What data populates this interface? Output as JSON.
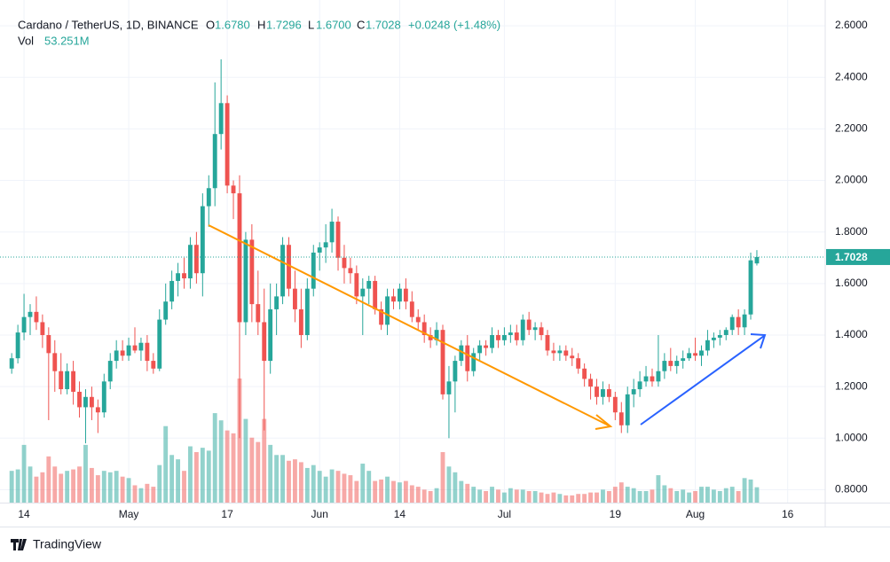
{
  "chart_data": {
    "type": "candlestick",
    "title": "Cardano / TetherUS, 1D, BINANCE",
    "legend": {
      "open_label": "O",
      "open": "1.6780",
      "high_label": "H",
      "high": "1.7296",
      "low_label": "L",
      "low": "1.6700",
      "close_label": "C",
      "close": "1.7028",
      "change": "+0.0248 (+1.48%)",
      "volume_label": "Vol",
      "volume": "53.251M"
    },
    "last_price_label": "1.7028",
    "up_color": "#26a69a",
    "down_color": "#ef5350",
    "ohlc": [
      [
        1.27,
        1.33,
        1.25,
        1.31
      ],
      [
        1.31,
        1.44,
        1.29,
        1.41
      ],
      [
        1.41,
        1.56,
        1.38,
        1.47
      ],
      [
        1.47,
        1.52,
        1.4,
        1.49
      ],
      [
        1.49,
        1.55,
        1.42,
        1.45
      ],
      [
        1.45,
        1.48,
        1.35,
        1.4
      ],
      [
        1.4,
        1.43,
        1.07,
        1.33
      ],
      [
        1.33,
        1.38,
        1.18,
        1.26
      ],
      [
        1.26,
        1.33,
        1.17,
        1.19
      ],
      [
        1.19,
        1.29,
        1.17,
        1.26
      ],
      [
        1.26,
        1.3,
        1.13,
        1.18
      ],
      [
        1.18,
        1.22,
        1.08,
        1.12
      ],
      [
        1.12,
        1.19,
        0.98,
        1.16
      ],
      [
        1.16,
        1.2,
        1.07,
        1.12
      ],
      [
        1.12,
        1.15,
        1.02,
        1.1
      ],
      [
        1.1,
        1.25,
        1.08,
        1.22
      ],
      [
        1.22,
        1.33,
        1.19,
        1.3
      ],
      [
        1.3,
        1.38,
        1.27,
        1.34
      ],
      [
        1.34,
        1.38,
        1.3,
        1.32
      ],
      [
        1.32,
        1.39,
        1.3,
        1.36
      ],
      [
        1.36,
        1.43,
        1.33,
        1.34
      ],
      [
        1.34,
        1.39,
        1.3,
        1.37
      ],
      [
        1.37,
        1.4,
        1.26,
        1.3
      ],
      [
        1.3,
        1.33,
        1.25,
        1.27
      ],
      [
        1.27,
        1.5,
        1.26,
        1.46
      ],
      [
        1.46,
        1.6,
        1.44,
        1.53
      ],
      [
        1.53,
        1.65,
        1.5,
        1.61
      ],
      [
        1.61,
        1.68,
        1.55,
        1.64
      ],
      [
        1.64,
        1.7,
        1.58,
        1.62
      ],
      [
        1.62,
        1.78,
        1.58,
        1.75
      ],
      [
        1.75,
        1.8,
        1.6,
        1.64
      ],
      [
        1.64,
        1.95,
        1.55,
        1.9
      ],
      [
        1.9,
        2.02,
        1.82,
        1.97
      ],
      [
        1.97,
        2.38,
        1.9,
        2.18
      ],
      [
        2.18,
        2.47,
        2.12,
        2.3
      ],
      [
        2.3,
        2.33,
        1.95,
        1.98
      ],
      [
        1.98,
        2.0,
        1.85,
        1.95
      ],
      [
        1.95,
        2.02,
        1.0,
        1.45
      ],
      [
        1.45,
        1.8,
        1.4,
        1.77
      ],
      [
        1.77,
        1.83,
        1.45,
        1.52
      ],
      [
        1.52,
        1.65,
        1.4,
        1.45
      ],
      [
        1.45,
        1.58,
        1.03,
        1.3
      ],
      [
        1.3,
        1.6,
        1.25,
        1.5
      ],
      [
        1.5,
        1.6,
        1.4,
        1.55
      ],
      [
        1.55,
        1.78,
        1.52,
        1.75
      ],
      [
        1.75,
        1.78,
        1.55,
        1.58
      ],
      [
        1.58,
        1.65,
        1.45,
        1.5
      ],
      [
        1.5,
        1.58,
        1.35,
        1.4
      ],
      [
        1.4,
        1.62,
        1.38,
        1.58
      ],
      [
        1.58,
        1.75,
        1.55,
        1.72
      ],
      [
        1.72,
        1.76,
        1.65,
        1.74
      ],
      [
        1.74,
        1.83,
        1.68,
        1.76
      ],
      [
        1.76,
        1.89,
        1.72,
        1.84
      ],
      [
        1.84,
        1.86,
        1.65,
        1.7
      ],
      [
        1.7,
        1.75,
        1.6,
        1.66
      ],
      [
        1.66,
        1.7,
        1.6,
        1.64
      ],
      [
        1.64,
        1.67,
        1.52,
        1.55
      ],
      [
        1.55,
        1.62,
        1.4,
        1.58
      ],
      [
        1.58,
        1.63,
        1.52,
        1.61
      ],
      [
        1.61,
        1.63,
        1.48,
        1.5
      ],
      [
        1.5,
        1.53,
        1.42,
        1.44
      ],
      [
        1.44,
        1.58,
        1.4,
        1.55
      ],
      [
        1.55,
        1.58,
        1.5,
        1.53
      ],
      [
        1.53,
        1.6,
        1.5,
        1.58
      ],
      [
        1.58,
        1.62,
        1.5,
        1.53
      ],
      [
        1.53,
        1.57,
        1.45,
        1.47
      ],
      [
        1.47,
        1.5,
        1.42,
        1.45
      ],
      [
        1.45,
        1.48,
        1.37,
        1.4
      ],
      [
        1.4,
        1.43,
        1.35,
        1.38
      ],
      [
        1.38,
        1.45,
        1.36,
        1.42
      ],
      [
        1.42,
        1.44,
        1.15,
        1.17
      ],
      [
        1.17,
        1.28,
        1.0,
        1.22
      ],
      [
        1.22,
        1.32,
        1.1,
        1.3
      ],
      [
        1.3,
        1.38,
        1.28,
        1.36
      ],
      [
        1.36,
        1.4,
        1.22,
        1.26
      ],
      [
        1.26,
        1.35,
        1.24,
        1.33
      ],
      [
        1.33,
        1.38,
        1.3,
        1.36
      ],
      [
        1.36,
        1.38,
        1.32,
        1.35
      ],
      [
        1.35,
        1.43,
        1.33,
        1.4
      ],
      [
        1.4,
        1.42,
        1.35,
        1.38
      ],
      [
        1.38,
        1.43,
        1.36,
        1.4
      ],
      [
        1.4,
        1.44,
        1.37,
        1.41
      ],
      [
        1.41,
        1.44,
        1.36,
        1.38
      ],
      [
        1.38,
        1.48,
        1.36,
        1.46
      ],
      [
        1.46,
        1.49,
        1.4,
        1.42
      ],
      [
        1.42,
        1.45,
        1.38,
        1.43
      ],
      [
        1.43,
        1.45,
        1.38,
        1.4
      ],
      [
        1.4,
        1.42,
        1.32,
        1.34
      ],
      [
        1.34,
        1.37,
        1.3,
        1.33
      ],
      [
        1.33,
        1.36,
        1.3,
        1.34
      ],
      [
        1.34,
        1.36,
        1.3,
        1.32
      ],
      [
        1.32,
        1.35,
        1.28,
        1.31
      ],
      [
        1.31,
        1.33,
        1.25,
        1.27
      ],
      [
        1.27,
        1.29,
        1.2,
        1.23
      ],
      [
        1.23,
        1.25,
        1.15,
        1.2
      ],
      [
        1.2,
        1.23,
        1.13,
        1.16
      ],
      [
        1.16,
        1.22,
        1.13,
        1.19
      ],
      [
        1.19,
        1.21,
        1.14,
        1.16
      ],
      [
        1.16,
        1.18,
        1.07,
        1.1
      ],
      [
        1.1,
        1.14,
        1.02,
        1.05
      ],
      [
        1.05,
        1.2,
        1.02,
        1.17
      ],
      [
        1.17,
        1.23,
        1.12,
        1.19
      ],
      [
        1.19,
        1.26,
        1.16,
        1.22
      ],
      [
        1.22,
        1.28,
        1.2,
        1.24
      ],
      [
        1.24,
        1.27,
        1.2,
        1.22
      ],
      [
        1.22,
        1.4,
        1.2,
        1.26
      ],
      [
        1.26,
        1.33,
        1.23,
        1.3
      ],
      [
        1.3,
        1.35,
        1.26,
        1.28
      ],
      [
        1.28,
        1.32,
        1.25,
        1.3
      ],
      [
        1.3,
        1.34,
        1.27,
        1.31
      ],
      [
        1.31,
        1.35,
        1.3,
        1.33
      ],
      [
        1.33,
        1.39,
        1.3,
        1.32
      ],
      [
        1.32,
        1.36,
        1.28,
        1.34
      ],
      [
        1.34,
        1.42,
        1.32,
        1.38
      ],
      [
        1.38,
        1.41,
        1.35,
        1.39
      ],
      [
        1.39,
        1.42,
        1.36,
        1.4
      ],
      [
        1.4,
        1.43,
        1.38,
        1.42
      ],
      [
        1.42,
        1.48,
        1.4,
        1.47
      ],
      [
        1.47,
        1.5,
        1.4,
        1.43
      ],
      [
        1.43,
        1.5,
        1.4,
        1.48
      ],
      [
        1.48,
        1.72,
        1.46,
        1.69
      ],
      [
        1.678,
        1.7296,
        1.67,
        1.7028
      ]
    ],
    "volume": [
      110,
      115,
      200,
      125,
      90,
      105,
      160,
      125,
      100,
      110,
      115,
      125,
      200,
      120,
      95,
      110,
      105,
      110,
      90,
      85,
      60,
      50,
      65,
      55,
      130,
      265,
      165,
      150,
      110,
      195,
      175,
      190,
      180,
      310,
      285,
      250,
      240,
      430,
      290,
      225,
      210,
      290,
      200,
      165,
      165,
      145,
      150,
      140,
      120,
      130,
      110,
      90,
      115,
      110,
      100,
      95,
      75,
      135,
      110,
      75,
      80,
      90,
      75,
      70,
      75,
      60,
      55,
      45,
      40,
      50,
      175,
      125,
      105,
      75,
      65,
      55,
      45,
      40,
      55,
      45,
      35,
      50,
      45,
      45,
      40,
      40,
      35,
      30,
      35,
      30,
      25,
      25,
      30,
      30,
      35,
      35,
      45,
      40,
      55,
      70,
      55,
      50,
      40,
      40,
      45,
      95,
      60,
      50,
      40,
      45,
      35,
      40,
      55,
      55,
      45,
      40,
      50,
      55,
      40,
      85,
      80,
      53.251
    ],
    "xlim": [
      -1.9,
      132.1
    ],
    "xticks": [
      {
        "value": 2,
        "label": "14"
      },
      {
        "value": 19,
        "label": "May"
      },
      {
        "value": 35,
        "label": "17"
      },
      {
        "value": 50,
        "label": "Jun"
      },
      {
        "value": 63,
        "label": "14"
      },
      {
        "value": 80,
        "label": "Jul"
      },
      {
        "value": 98,
        "label": "19"
      },
      {
        "value": 111,
        "label": "Aug"
      },
      {
        "value": 126,
        "label": "16"
      }
    ],
    "ylim": [
      0.75,
      2.7
    ],
    "yticks": [
      {
        "value": 0.8,
        "label": "0.8000"
      },
      {
        "value": 1.0,
        "label": "1.0000"
      },
      {
        "value": 1.2,
        "label": "1.2000"
      },
      {
        "value": 1.4,
        "label": "1.4000"
      },
      {
        "value": 1.6,
        "label": "1.6000"
      },
      {
        "value": 1.8,
        "label": "1.8000"
      },
      {
        "value": 2.0,
        "label": "2.0000"
      },
      {
        "value": 2.2,
        "label": "2.2000"
      },
      {
        "value": 2.4,
        "label": "2.4000"
      },
      {
        "value": 2.6,
        "label": "2.6000"
      }
    ],
    "grid": true,
    "logo": "TradingView"
  }
}
